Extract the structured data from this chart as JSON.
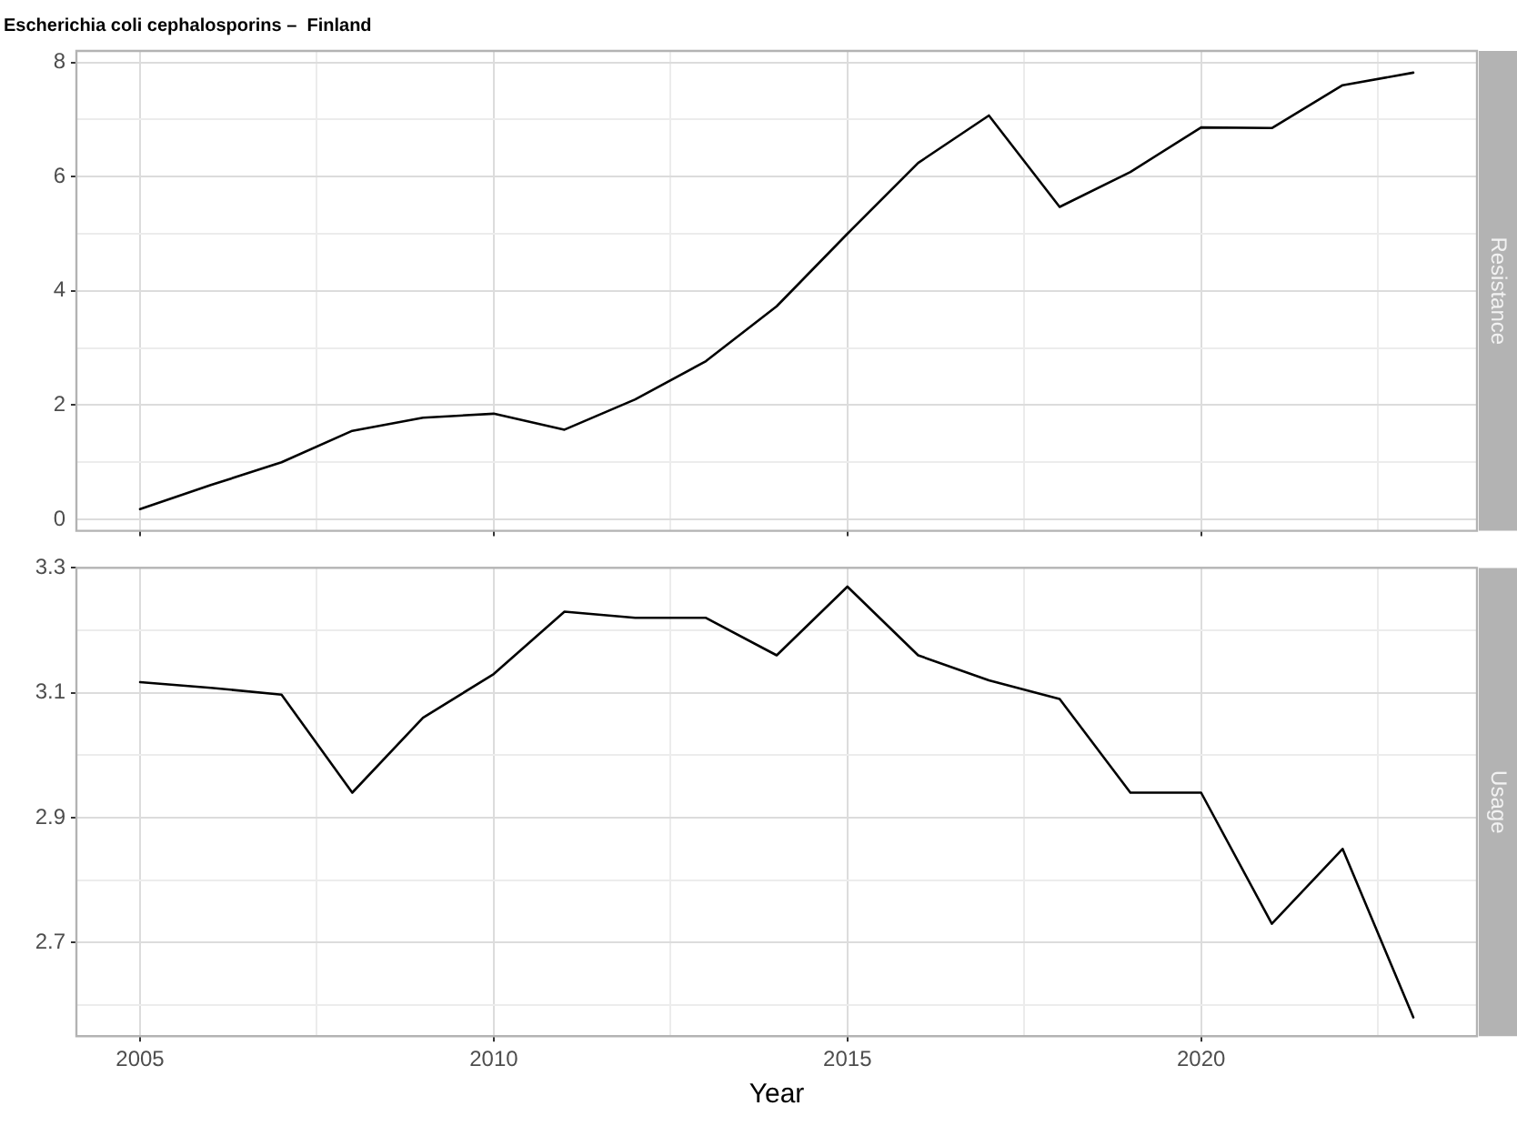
{
  "chart_data": [
    {
      "type": "line",
      "title": "Escherichia coli cephalosporins –  Finland",
      "ylabel": "Resistance",
      "x": [
        2005,
        2006,
        2007,
        2008,
        2009,
        2010,
        2011,
        2012,
        2013,
        2014,
        2015,
        2016,
        2017,
        2018,
        2019,
        2020,
        2021,
        2022,
        2023
      ],
      "series": [
        {
          "color": "#000000",
          "values": [
            0.18,
            0.6,
            1.0,
            1.55,
            1.78,
            1.85,
            1.57,
            2.1,
            2.77,
            3.73,
            5.0,
            6.24,
            7.07,
            5.47,
            6.08,
            6.86,
            6.85,
            7.6,
            7.82
          ]
        }
      ],
      "xlim": [
        2004.1,
        2023.9
      ],
      "xticks": [
        2005,
        {
          "value": 2007.5,
          "label": null
        },
        2010,
        {
          "value": 2012.5,
          "label": null
        },
        2015,
        {
          "value": 2017.5,
          "label": null
        },
        2020,
        {
          "value": 2022.5,
          "label": null
        }
      ],
      "ylim": [
        -0.2,
        8.2
      ],
      "yticks": [
        0,
        {
          "value": 1,
          "label": null
        },
        2,
        {
          "value": 3,
          "label": null
        },
        4,
        {
          "value": 5,
          "label": null
        },
        6,
        {
          "value": 7,
          "label": null
        },
        8
      ],
      "grid": true,
      "legend": false,
      "marker": "none",
      "line_style": "solid",
      "tick_labels": "y"
    },
    {
      "type": "line",
      "ylabel": "Usage",
      "xlabel": "Year",
      "x": [
        2005,
        2006,
        2007,
        2008,
        2009,
        2010,
        2011,
        2012,
        2013,
        2014,
        2015,
        2016,
        2017,
        2018,
        2019,
        2020,
        2021,
        2022,
        2023
      ],
      "series": [
        {
          "color": "#000000",
          "values": [
            3.117,
            3.108,
            3.097,
            2.94,
            3.06,
            3.13,
            3.23,
            3.22,
            3.22,
            3.16,
            3.27,
            3.16,
            3.12,
            3.09,
            2.94,
            2.94,
            2.73,
            2.85,
            2.58
          ]
        }
      ],
      "xlim": [
        2004.1,
        2023.9
      ],
      "xticks": [
        2005,
        {
          "value": 2007.5,
          "label": null
        },
        2010,
        {
          "value": 2012.5,
          "label": null
        },
        2015,
        {
          "value": 2017.5,
          "label": null
        },
        2020,
        {
          "value": 2022.5,
          "label": null
        }
      ],
      "ylim": [
        2.55,
        3.3
      ],
      "yticks": [
        {
          "value": 2.6,
          "label": null
        },
        2.7,
        {
          "value": 2.8,
          "label": null
        },
        2.9,
        {
          "value": 3.0,
          "label": null
        },
        3.1,
        {
          "value": 3.2,
          "label": null
        },
        3.3
      ],
      "grid": true,
      "legend": false,
      "marker": "none",
      "line_style": "solid"
    }
  ]
}
